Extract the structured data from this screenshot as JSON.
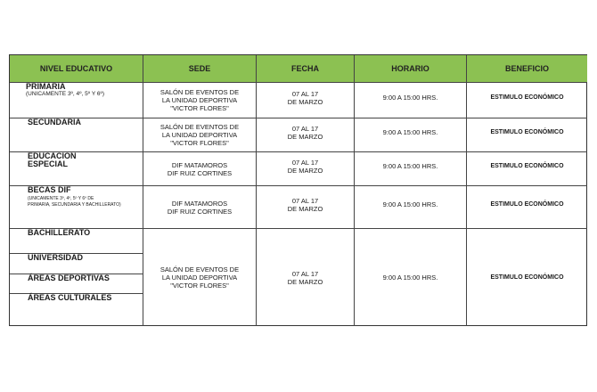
{
  "theme": {
    "header_color": "#8cc152"
  },
  "headers": [
    "NIVEL EDUCATIVO",
    "SEDE",
    "FECHA",
    "HORARIO",
    "BENEFICIO"
  ],
  "rows": [
    {
      "nivel": "PRIMARIA",
      "nota": "(UNICAMENTE 3º, 4º, 5º Y 6º)",
      "sede": [
        "SALÓN DE EVENTOS DE",
        "LA UNIDAD DEPORTIVA",
        "\"VICTOR FLORES\""
      ],
      "fecha": [
        "07 AL 17",
        "DE MARZO"
      ],
      "horario": "9:00 A 15:00 HRS.",
      "beneficio": "ESTIMULO ECONÓMICO"
    },
    {
      "nivel": "SECUNDARIA",
      "sede": [
        "SALÓN DE EVENTOS DE",
        "LA UNIDAD DEPORTIVA",
        "\"VICTOR FLORES\""
      ],
      "fecha": [
        "07 AL 17",
        "DE MARZO"
      ],
      "horario": "9:00 A 15:00 HRS.",
      "beneficio": "ESTIMULO ECONÓMICO"
    },
    {
      "nivel": [
        "EDUCACION",
        "ESPECIAL"
      ],
      "sede": [
        "DIF MATAMOROS",
        "DIF RUIZ CORTINES"
      ],
      "fecha": [
        "07 AL 17",
        "DE MARZO"
      ],
      "horario": "9:00 A 15:00 HRS.",
      "beneficio": "ESTIMULO ECONÓMICO"
    },
    {
      "nivel": "BECAS DIF",
      "nota": [
        "(UNICAMENTE 3º, 4º, 5º Y 6º DE",
        "PRIMARIA, SECUNDARIA Y BACHILLERATO)"
      ],
      "sede": [
        "DIF MATAMOROS",
        "DIF RUIZ CORTINES"
      ],
      "fecha": [
        "07 AL 17",
        "DE MARZO"
      ],
      "horario": "9:00 A 15:00 HRS.",
      "beneficio": "ESTIMULO ECONÓMICO"
    },
    {
      "niveles": [
        "BACHILLERATO",
        "UNIVERSIDAD",
        "ÁREAS DEPORTIVAS",
        "ÁREAS CULTURALES"
      ],
      "sede": [
        "SALÓN DE EVENTOS DE",
        "LA UNIDAD DEPORTIVA",
        "\"VICTOR FLORES\""
      ],
      "fecha": [
        "07 AL 17",
        "DE MARZO"
      ],
      "horario": "9:00 A 15:00 HRS.",
      "beneficio": "ESTIMULO ECONÓMICO"
    }
  ]
}
